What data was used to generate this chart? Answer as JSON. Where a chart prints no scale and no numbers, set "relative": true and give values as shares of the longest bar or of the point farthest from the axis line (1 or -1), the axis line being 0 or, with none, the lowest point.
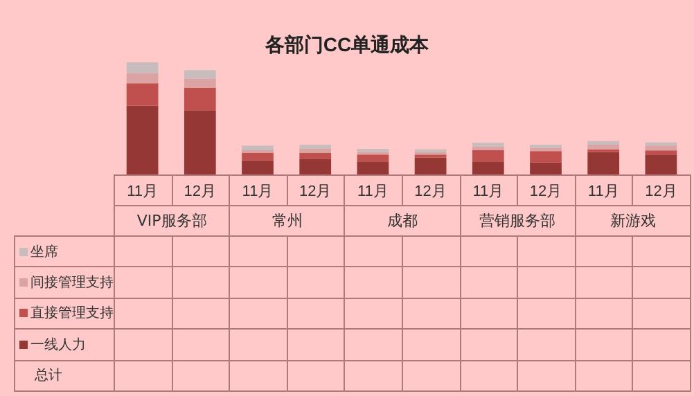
{
  "chart_data": {
    "type": "bar",
    "title": "各部门CC单通成本",
    "stacked": true,
    "relative": true,
    "legend": "bottom left",
    "categories": [
      "11月",
      "12月",
      "11月",
      "12月",
      "11月",
      "12月",
      "11月",
      "12月",
      "11月",
      "12月"
    ],
    "series": [
      {
        "name": "一线人力",
        "color": "#953735",
        "values": [
          0.614,
          0.573,
          0.125,
          0.141,
          0.116,
          0.149,
          0.116,
          0.108,
          0.199,
          0.178
        ]
      },
      {
        "name": "直接管理支持",
        "color": "#c0504d",
        "values": [
          0.199,
          0.199,
          0.066,
          0.05,
          0.062,
          0.029,
          0.1,
          0.1,
          0.025,
          0.037
        ]
      },
      {
        "name": "间接管理支持",
        "color": "#dba3a3",
        "values": [
          0.092,
          0.083,
          0.025,
          0.037,
          0.021,
          0.021,
          0.033,
          0.029,
          0.041,
          0.042
        ]
      },
      {
        "name": "坐席",
        "color": "#c9bcbc",
        "values": [
          0.095,
          0.075,
          0.042,
          0.037,
          0.029,
          0.025,
          0.033,
          0.029,
          0.033,
          0.029
        ]
      }
    ],
    "annotations": [
      "VIP服务部",
      "常州",
      "成都",
      "营销服务部",
      "新游戏",
      "总计"
    ]
  }
}
